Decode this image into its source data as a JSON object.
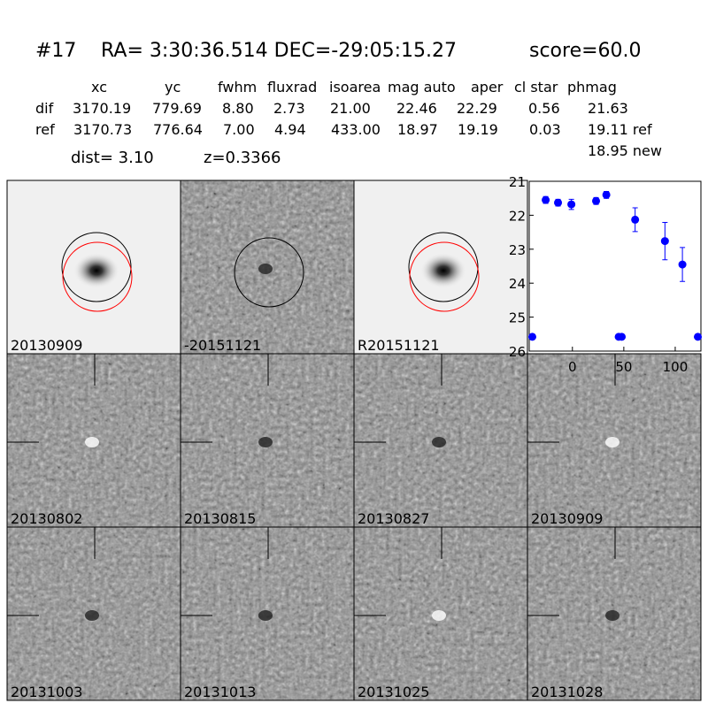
{
  "header": {
    "id": "#17",
    "coords": "RA= 3:30:36.514 DEC=-29:05:15.27",
    "score": "score=60.0"
  },
  "table": {
    "columns": [
      "xc",
      "yc",
      "fwhm",
      "fluxrad",
      "isoarea",
      "mag auto",
      "aper",
      "cl star",
      "phmag"
    ],
    "rows": [
      [
        "dif",
        "3170.19",
        "779.69",
        "8.80",
        "2.73",
        "21.00",
        "22.46",
        "22.29",
        "0.56",
        "21.63"
      ],
      [
        "ref",
        "3170.73",
        "776.64",
        "7.00",
        "4.94",
        "433.00",
        "18.97",
        "19.19",
        "0.03",
        "19.11 ref"
      ]
    ],
    "extra": "18.95 new"
  },
  "dist": "dist=  3.10",
  "z": "z=0.3366",
  "stamps": [
    "20130909",
    "-20151121",
    "R20151121",
    "20130802",
    "20130815",
    "20130827",
    "20130909",
    "20131003",
    "20131013",
    "20131025",
    "20131028"
  ],
  "highlight_stamp": 6,
  "highlight_color": "#ff0000",
  "chart_data": {
    "type": "scatter",
    "color": "#0000ff",
    "x": [
      -39,
      -26,
      -14,
      -1,
      23,
      33,
      45,
      48,
      61,
      90,
      107,
      122
    ],
    "values": [
      25.58,
      21.55,
      21.63,
      21.68,
      21.58,
      21.4,
      25.58,
      25.58,
      22.13,
      22.76,
      23.45,
      25.58
    ],
    "errors": [
      0,
      0.1,
      0.1,
      0.15,
      0.1,
      0.1,
      0,
      0,
      0.35,
      0.55,
      0.5,
      0
    ],
    "xlim": [
      -42,
      125
    ],
    "xticks": [
      0,
      50,
      100
    ],
    "ylim": [
      21,
      26
    ],
    "yticks": [
      21,
      22,
      23,
      24,
      25,
      26
    ],
    "y_inverted": true
  }
}
